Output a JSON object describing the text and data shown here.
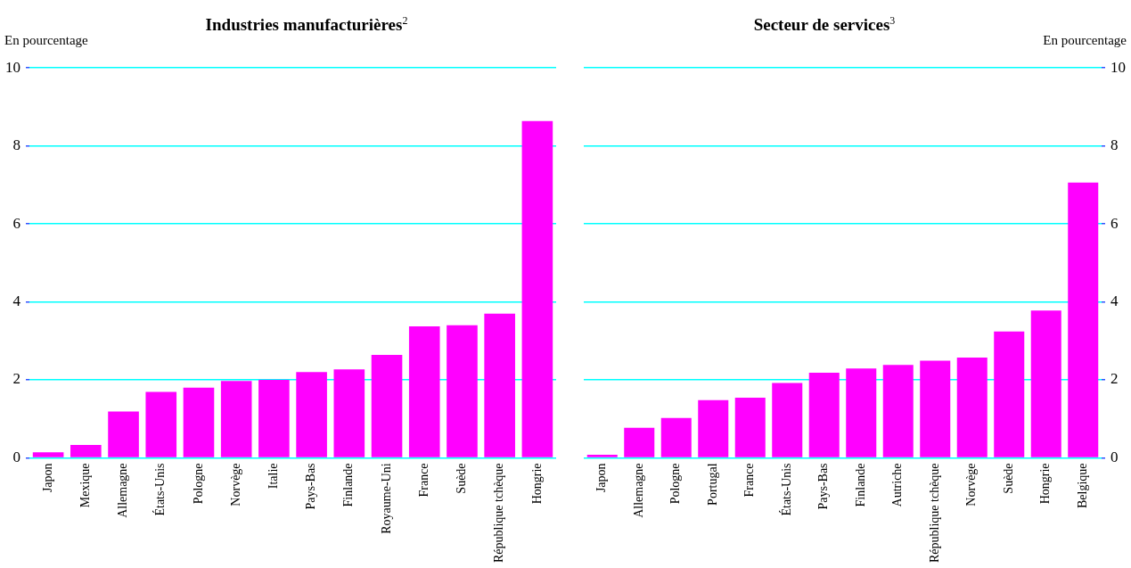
{
  "chart_data": [
    {
      "type": "bar",
      "title": "Industries manufacturières$^{2}$",
      "ylabel": "En pourcentage",
      "categories": [
        "Japon",
        "Mexique",
        "Allemagne",
        "États-Unis",
        "Pologne",
        "Norvège",
        "Italie",
        "Pays-Bas",
        "Finlande",
        "Royaume-Uni",
        "France",
        "Suède",
        "République tchèque",
        "Hongrie"
      ],
      "series": [
        {
          "color": "#ff00ff",
          "values": [
            0.14,
            0.33,
            1.19,
            1.69,
            1.8,
            1.97,
            2.0,
            2.2,
            2.27,
            2.64,
            3.37,
            3.4,
            3.7,
            8.64
          ]
        }
      ],
      "ylim": [
        0,
        10
      ],
      "yticks": [
        0,
        2,
        4,
        6,
        8,
        10
      ],
      "grid": "y"
    },
    {
      "type": "bar",
      "title": "Secteur de services$^{3}$",
      "y2label": "En pourcentage",
      "categories": [
        "Japon",
        "Allemagne",
        "Pologne",
        "Portugal",
        "France",
        "États-Unis",
        "Pays-Bas",
        "Finlande",
        "Autriche",
        "République tchèque",
        "Norvège",
        "Suède",
        "Hongrie",
        "Belgique"
      ],
      "series": [
        {
          "color": "#ff00ff",
          "values": [
            0.08,
            0.77,
            1.02,
            1.48,
            1.54,
            1.92,
            2.18,
            2.29,
            2.38,
            2.49,
            2.57,
            3.24,
            3.78,
            7.06
          ],
          "axis": "y2"
        }
      ],
      "y2lim": [
        0,
        10
      ],
      "y2ticks": [
        0,
        2,
        4,
        6,
        8,
        10
      ],
      "grid": "y"
    }
  ]
}
